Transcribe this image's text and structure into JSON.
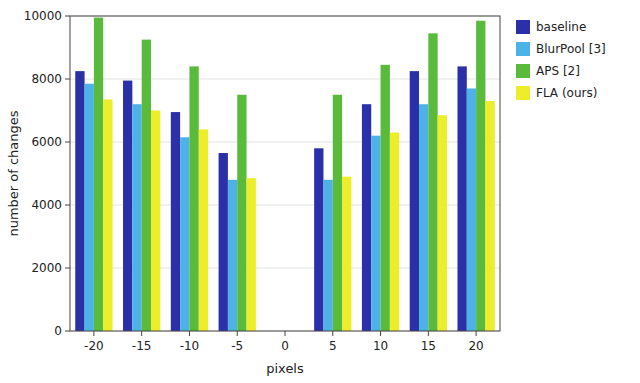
{
  "chart_data": {
    "type": "bar",
    "x": [
      -20,
      -15,
      -10,
      -5,
      0,
      5,
      10,
      15,
      20
    ],
    "series": [
      {
        "name": "baseline",
        "color": "#2b2fa8",
        "values": [
          8250,
          7950,
          6950,
          5650,
          0,
          5800,
          7200,
          8250,
          8400
        ]
      },
      {
        "name": "BlurPool [3]",
        "color": "#4db3e6",
        "values": [
          7850,
          7200,
          6150,
          4800,
          0,
          4800,
          6200,
          7200,
          7700
        ]
      },
      {
        "name": "APS [2]",
        "color": "#5aba3c",
        "values": [
          9950,
          9250,
          8400,
          7500,
          0,
          7500,
          8450,
          9450,
          9850
        ]
      },
      {
        "name": "FLA (ours)",
        "color": "#eded2a",
        "values": [
          7350,
          7000,
          6400,
          4850,
          0,
          4900,
          6300,
          6850,
          7300
        ]
      }
    ],
    "x_label": "pixels",
    "y_label": "number of changes",
    "xlim": [
      -22.5,
      22.5
    ],
    "xticks": [
      -20,
      -15,
      -10,
      -5,
      0,
      5,
      10,
      15,
      20
    ],
    "ylim": [
      0,
      10000
    ],
    "yticks": [
      0,
      2000,
      4000,
      6000,
      8000,
      10000
    ],
    "grid": true,
    "legend": "right"
  }
}
